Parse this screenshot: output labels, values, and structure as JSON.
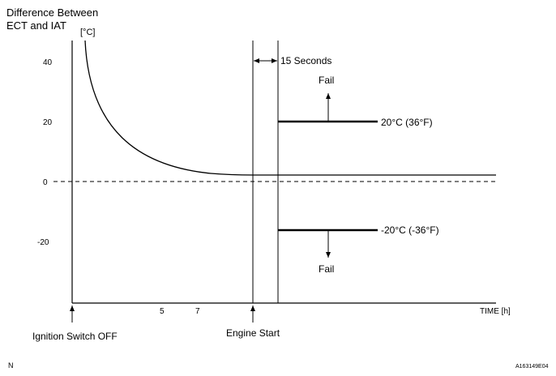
{
  "title_line1": "Difference Between",
  "title_line2": "ECT and IAT",
  "y_unit": "[°C]",
  "y_ticks": [
    "40",
    "20",
    "0",
    "-20"
  ],
  "x_ticks": [
    "5",
    "7"
  ],
  "x_axis_label": "TIME [h]",
  "interval_label": "15 Seconds",
  "fail_upper": "Fail",
  "fail_lower": "Fail",
  "threshold_upper": "20°C (36°F)",
  "threshold_lower": "-20°C (-36°F)",
  "event_ignition": "Ignition Switch OFF",
  "event_engine": "Engine Start",
  "corner_letter": "N",
  "figure_code": "A163149E04"
}
